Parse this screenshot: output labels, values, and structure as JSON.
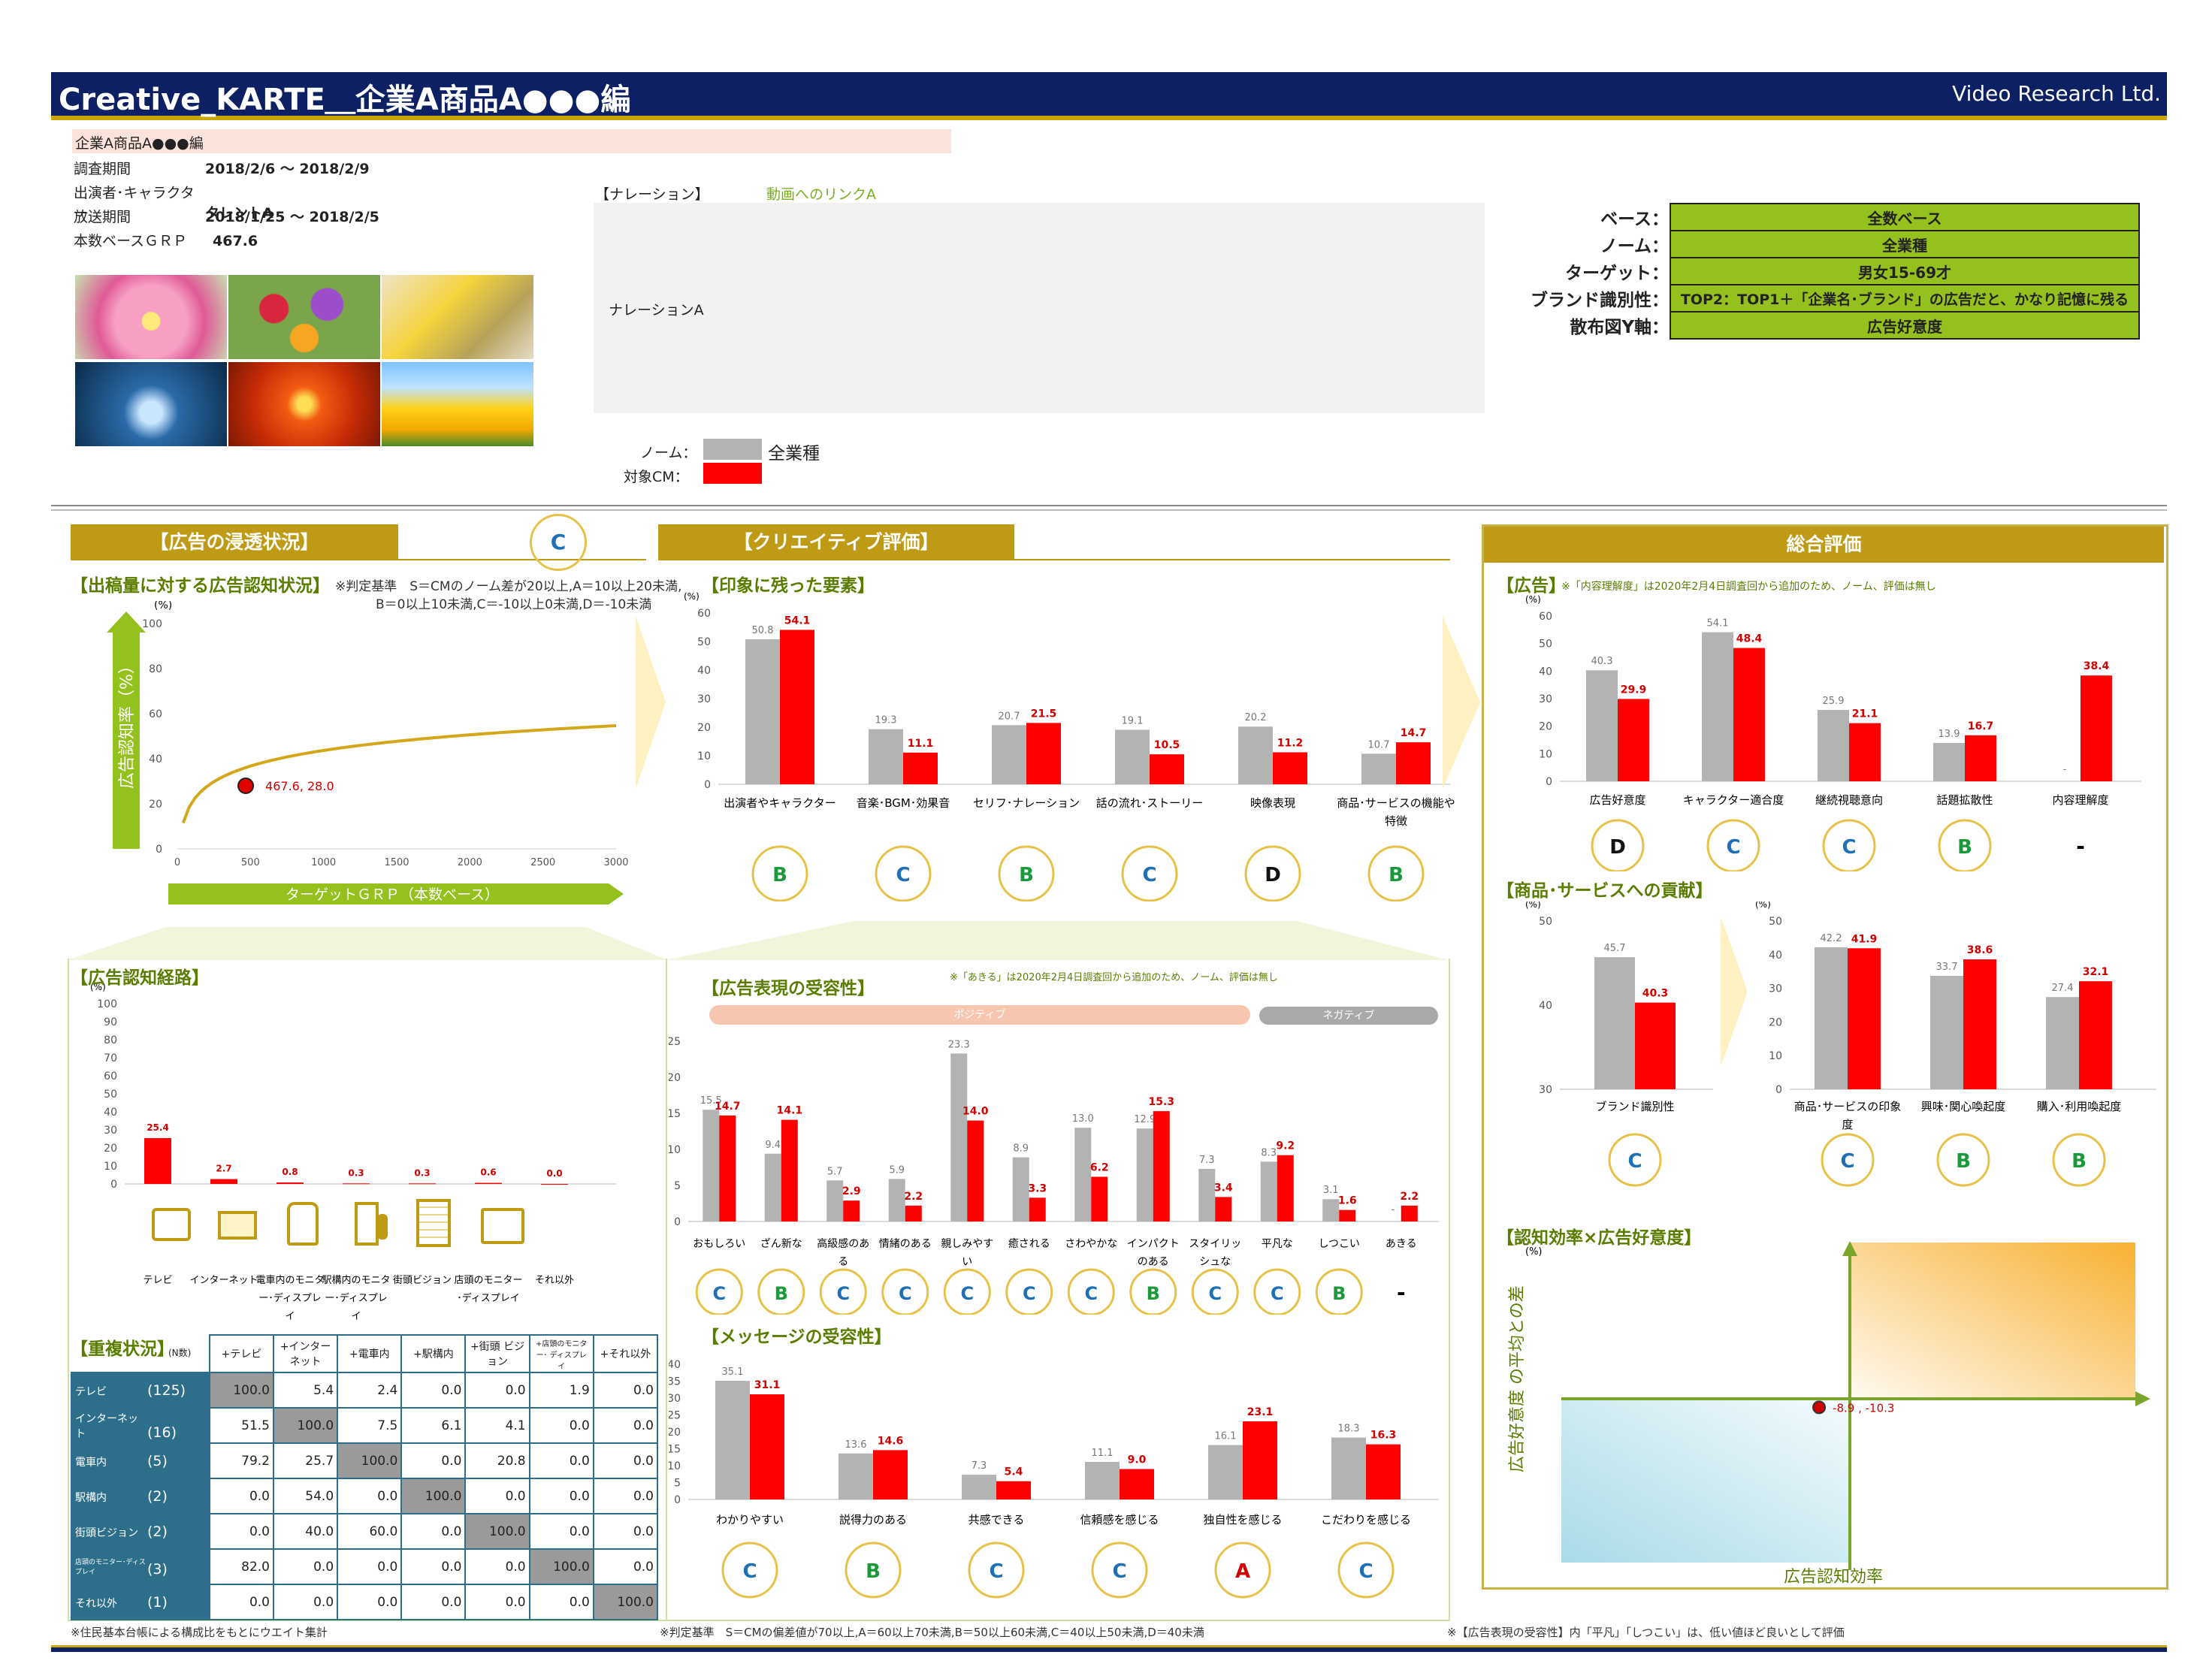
{
  "header": {
    "title": "Creative_KARTE＿企業A商品A●●●編",
    "company": "Video Research Ltd."
  },
  "info": {
    "name": "企業A商品A●●●編",
    "rows": [
      {
        "label": "調査期間",
        "value": "2018/2/6 ～ 2018/2/9"
      },
      {
        "label": "出演者･キャラクター",
        "value": "タレントA"
      },
      {
        "label": "放送期間",
        "value": "2018/1/25 ～ 2018/2/5"
      },
      {
        "label": "本数ベースＧＲＰ",
        "value": "467.6"
      }
    ]
  },
  "narration": {
    "label": "【ナレーション】",
    "link": "動画へのリンクA",
    "text": "ナレーションA"
  },
  "legend": {
    "norm_label": "ノーム：",
    "norm_value": "全業種",
    "target_label": "対象CM："
  },
  "bases": [
    {
      "label": "ベース：",
      "value": "全数ベース"
    },
    {
      "label": "ノーム：",
      "value": "全業種"
    },
    {
      "label": "ターゲット：",
      "value": "男女15-69才"
    },
    {
      "label": "ブランド識別性：",
      "value": "TOP2：TOP1＋「企業名･ブランド」の広告だと、かなり記憶に残る"
    },
    {
      "label": "散布図Y軸：",
      "value": "広告好意度"
    }
  ],
  "colors": {
    "navy": "#0d2063",
    "gold": "#bf9a14",
    "norm": "#b3b3b3",
    "target": "#ff0000",
    "green": "#5a7d00",
    "band": "#95c11f"
  },
  "penetration": {
    "tab": "【広告の浸透状況】",
    "grade": "C",
    "sub": "【出稿量に対する広告認知状況】",
    "criteria": "※判定基準　S＝CMのノーム差が20以上,A＝10以上20未満,",
    "criteria2": "B＝0以上10未満,C＝-10以上0未満,D＝-10未満",
    "ylabel": "広告認知率（%）",
    "xlabel": "ターゲットＧＲＰ（本数ベース）",
    "point_label": "467.6, 28.0",
    "pct": "(%)"
  },
  "creative": {
    "tab": "【クリエイティブ評価】",
    "sub": "【印象に残った要素】",
    "pct": "(%)"
  },
  "overall": {
    "tab": "総合評価",
    "ad_sub": "【広告】",
    "ad_note": "※「内容理解度」は2020年2月4日調査回から追加のため、ノーム、評価は無し",
    "contrib_sub": "【商品･サービスへの貢献】",
    "scatter_sub": "【認知効率×広告好意度】",
    "scatter_y": "広告好意度 の平均との差",
    "scatter_x": "広告認知効率",
    "scatter_pct": "(%)",
    "scatter_point": "-8.9 , -10.3"
  },
  "route": {
    "sub": "【広告認知経路】",
    "pct": "(%)"
  },
  "overlap": {
    "sub": "【重複状況】",
    "n": "(N数)",
    "headers": [
      "+テレビ",
      "+インター ネット",
      "+電車内",
      "+駅構内",
      "+街頭 ビジョン",
      "+店頭のモニター･ ディスプレイ",
      "+それ以外"
    ],
    "rows": [
      {
        "label": "テレビ",
        "n": "(125)",
        "vals": [
          "100.0",
          "5.4",
          "2.4",
          "0.0",
          "0.0",
          "1.9",
          "0.0"
        ]
      },
      {
        "label": "インターネット",
        "n": "(16)",
        "vals": [
          "51.5",
          "100.0",
          "7.5",
          "6.1",
          "4.1",
          "0.0",
          "0.0"
        ]
      },
      {
        "label": "電車内",
        "n": "(5)",
        "vals": [
          "79.2",
          "25.7",
          "100.0",
          "0.0",
          "20.8",
          "0.0",
          "0.0"
        ]
      },
      {
        "label": "駅構内",
        "n": "(2)",
        "vals": [
          "0.0",
          "54.0",
          "0.0",
          "100.0",
          "0.0",
          "0.0",
          "0.0"
        ]
      },
      {
        "label": "街頭ビジョン",
        "n": "(2)",
        "vals": [
          "0.0",
          "40.0",
          "60.0",
          "0.0",
          "100.0",
          "0.0",
          "0.0"
        ]
      },
      {
        "label": "店頭のモニター･ディスプレイ",
        "n": "(3)",
        "vals": [
          "82.0",
          "0.0",
          "0.0",
          "0.0",
          "0.0",
          "100.0",
          "0.0"
        ]
      },
      {
        "label": "それ以外",
        "n": "(1)",
        "vals": [
          "0.0",
          "0.0",
          "0.0",
          "0.0",
          "0.0",
          "0.0",
          "100.0"
        ]
      }
    ],
    "footnote": "※住民基本台帳による構成比をもとにウエイト集計"
  },
  "expression": {
    "sub": "【広告表現の受容性】",
    "note": "※「あきる」は2020年2月4日調査回から追加のため、ノーム、評価は無し",
    "positive": "ポジティブ",
    "negative": "ネガティブ",
    "pct": "(%)"
  },
  "message": {
    "sub": "【メッセージの受容性】",
    "pct": "(%)"
  },
  "footer": {
    "left": "※判定基準　S＝CMの偏差値が70以上,A＝60以上70未満,B＝50以上60未満,C＝40以上50未満,D＝40未満",
    "right": "※【広告表現の受容性】内「平凡」「しつこい」は、低い値ほど良いとして評価"
  },
  "chart_data": [
    {
      "id": "awareness",
      "type": "line",
      "ylim": [
        0,
        100
      ],
      "xlim": [
        0,
        3000
      ],
      "xticks": [
        "0",
        "500",
        "1000",
        "1500",
        "2000",
        "2500",
        "3000"
      ],
      "yticks": [
        "0",
        "20",
        "40",
        "60",
        "80",
        "100"
      ],
      "point": {
        "x": 467.6,
        "y": 28.0
      }
    },
    {
      "id": "impression",
      "type": "bar",
      "ylim": [
        0,
        60
      ],
      "yticks": [
        "0",
        "10",
        "20",
        "30",
        "40",
        "50",
        "60"
      ],
      "categories": [
        "出演者やキャラクター",
        "音楽･BGM･効果音",
        "セリフ･ナレーション",
        "話の流れ･ストーリー",
        "映像表現",
        "商品･サービスの機能や特徴"
      ],
      "norm": [
        50.8,
        19.3,
        20.7,
        19.1,
        20.2,
        10.7
      ],
      "target": [
        54.1,
        11.1,
        21.5,
        10.5,
        11.2,
        14.7
      ],
      "grades": [
        "B",
        "C",
        "B",
        "C",
        "D",
        "B"
      ]
    },
    {
      "id": "ad",
      "type": "bar",
      "ylim": [
        0,
        60
      ],
      "yticks": [
        "0",
        "10",
        "20",
        "30",
        "40",
        "50",
        "60"
      ],
      "categories": [
        "広告好意度",
        "キャラクター適合度",
        "継続視聴意向",
        "話題拡散性",
        "内容理解度"
      ],
      "norm": [
        40.3,
        54.1,
        25.9,
        13.9,
        null
      ],
      "target": [
        29.9,
        48.4,
        21.1,
        16.7,
        38.4
      ],
      "norm_labels": [
        "40.3",
        "54.1",
        "25.9",
        "13.9",
        "-"
      ],
      "grades": [
        "D",
        "C",
        "C",
        "B",
        "-"
      ]
    },
    {
      "id": "brand",
      "type": "bar",
      "ylim": [
        30,
        50
      ],
      "yticks": [
        "30",
        "40",
        "50"
      ],
      "categories": [
        "ブランド識別性"
      ],
      "norm": [
        45.7
      ],
      "target": [
        40.3
      ],
      "grades": [
        "C"
      ]
    },
    {
      "id": "contrib",
      "type": "bar",
      "ylim": [
        0,
        50
      ],
      "yticks": [
        "0",
        "10",
        "20",
        "30",
        "40",
        "50"
      ],
      "categories": [
        "商品･サービスの印象度",
        "興味･関心喚起度",
        "購入･利用喚起度"
      ],
      "norm": [
        42.2,
        33.7,
        27.4
      ],
      "target": [
        41.9,
        38.6,
        32.1
      ],
      "grades": [
        "C",
        "B",
        "B"
      ]
    },
    {
      "id": "route",
      "type": "bar",
      "ylim": [
        0,
        100
      ],
      "yticks": [
        "0",
        "10",
        "20",
        "30",
        "40",
        "50",
        "60",
        "70",
        "80",
        "90",
        "100"
      ],
      "categories": [
        "テレビ",
        "インターネット",
        "電車内のモニター･ディスプレイ",
        "駅構内のモニター･ディスプレイ",
        "街頭ビジョン",
        "店頭のモニター･ディスプレイ",
        "それ以外"
      ],
      "values": [
        25.4,
        2.7,
        0.8,
        0.3,
        0.3,
        0.6,
        0.0
      ]
    },
    {
      "id": "expression",
      "type": "bar",
      "ylim": [
        0,
        25
      ],
      "yticks": [
        "0",
        "5",
        "10",
        "15",
        "20",
        "25"
      ],
      "categories": [
        "おもしろい",
        "ざん新な",
        "高級感のある",
        "情緒のある",
        "親しみやすい",
        "癒される",
        "さわやかな",
        "インパクトのある",
        "スタイリッシュな",
        "平凡な",
        "しつこい",
        "あきる"
      ],
      "norm": [
        15.5,
        9.4,
        5.7,
        5.9,
        23.3,
        8.9,
        13.0,
        12.9,
        7.3,
        8.3,
        3.1,
        null
      ],
      "target": [
        14.7,
        14.1,
        2.9,
        2.2,
        14.0,
        3.3,
        6.2,
        15.3,
        3.4,
        9.2,
        1.6,
        2.2
      ],
      "grades": [
        "C",
        "B",
        "C",
        "C",
        "C",
        "C",
        "C",
        "B",
        "C",
        "C",
        "B",
        "-"
      ]
    },
    {
      "id": "message",
      "type": "bar",
      "ylim": [
        0,
        40
      ],
      "yticks": [
        "0",
        "5",
        "10",
        "15",
        "20",
        "25",
        "30",
        "35",
        "40"
      ],
      "categories": [
        "わかりやすい",
        "説得力のある",
        "共感できる",
        "信頼感を感じる",
        "独自性を感じる",
        "こだわりを感じる"
      ],
      "norm": [
        35.1,
        13.6,
        7.3,
        11.1,
        16.1,
        18.3
      ],
      "target": [
        31.1,
        14.6,
        5.4,
        9.0,
        23.1,
        16.3
      ],
      "grades": [
        "C",
        "B",
        "C",
        "C",
        "A",
        "C"
      ]
    },
    {
      "id": "scatter",
      "type": "scatter",
      "point": {
        "x": -8.9,
        "y": -10.3
      }
    }
  ]
}
